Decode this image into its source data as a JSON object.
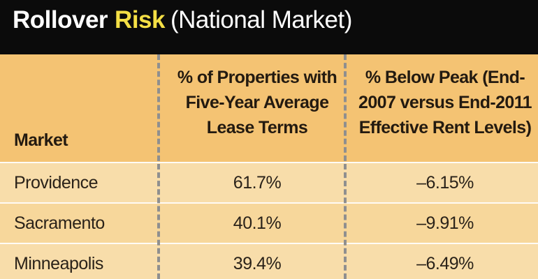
{
  "title": {
    "word1": "Rollover",
    "word2": "Risk",
    "word3": "(National Market)",
    "colors": {
      "word1": "#ffffff",
      "word2": "#f4df45"
    }
  },
  "chart_data": {
    "type": "table",
    "title": "Rollover Risk (National Market)",
    "columns": [
      "Market",
      "% of Properties with\nFive-Year Average\nLease Terms",
      "% Below Peak (End-\n2007 versus End-2011\nEffective Rent Levels)"
    ],
    "rows": [
      [
        "Providence",
        "61.7%",
        "–6.15%"
      ],
      [
        "Sacramento",
        "40.1%",
        "–9.91%"
      ],
      [
        "Minneapolis",
        "39.4%",
        "–6.49%"
      ]
    ]
  },
  "colors": {
    "background": "#f7d89b",
    "title_bar": "#0b0b0b",
    "header_band": "#f4c373"
  }
}
